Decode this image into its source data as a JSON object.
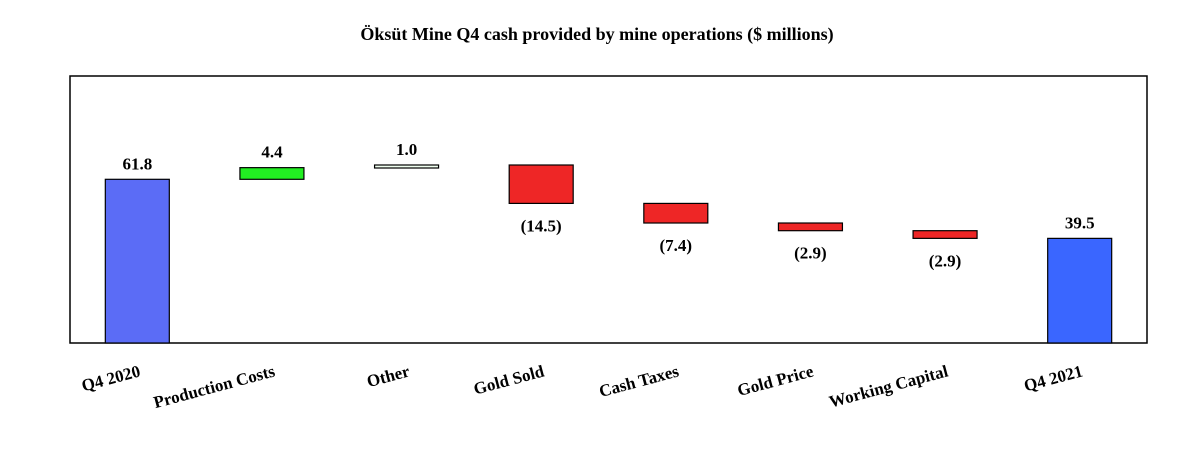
{
  "chart_data": {
    "type": "waterfall",
    "title": "Öksüt Mine Q4 cash provided by mine operations ($ millions)",
    "categories": [
      "Q4 2020",
      "Production Costs",
      "Other",
      "Gold Sold",
      "Cash Taxes",
      "Gold Price",
      "Working Capital",
      "Q4 2021"
    ],
    "values": [
      61.8,
      4.4,
      1.0,
      -14.5,
      -7.4,
      -2.9,
      -2.9,
      39.5
    ],
    "value_labels": [
      "61.8",
      "4.4",
      "1.0",
      "(14.5)",
      "(7.4)",
      "(2.9)",
      "(2.9)",
      "39.5"
    ],
    "measure": [
      "absolute",
      "relative",
      "relative",
      "relative",
      "relative",
      "relative",
      "relative",
      "absolute"
    ],
    "colors": [
      "#5b6cf6",
      "#22ee22",
      "#f0fff0",
      "#ee2626",
      "#ee2626",
      "#ee2626",
      "#ee2626",
      "#3a66ff"
    ]
  }
}
